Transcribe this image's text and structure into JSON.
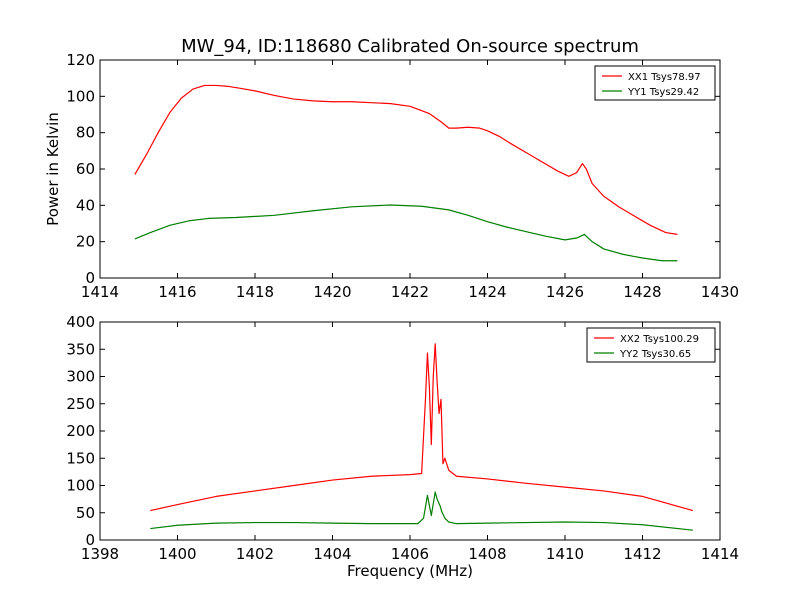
{
  "chart_data": [
    {
      "type": "line",
      "title": "MW_94, ID:118680 Calibrated On-source spectrum",
      "xlabel": "",
      "ylabel": "Power in Kelvin",
      "xlim": [
        1414,
        1430
      ],
      "ylim": [
        0,
        120
      ],
      "xticks": [
        1414,
        1416,
        1418,
        1420,
        1422,
        1424,
        1426,
        1428,
        1430
      ],
      "yticks": [
        0,
        20,
        40,
        60,
        80,
        100,
        120
      ],
      "legend": "top-right",
      "series": [
        {
          "name": "XX1 Tsys78.97",
          "color": "#ff0000",
          "x": [
            1414.9,
            1415.2,
            1415.5,
            1415.8,
            1416.1,
            1416.4,
            1416.7,
            1417.0,
            1417.3,
            1417.6,
            1418.0,
            1418.5,
            1419.0,
            1419.5,
            1420.0,
            1420.5,
            1421.0,
            1421.5,
            1422.0,
            1422.5,
            1422.8,
            1423.0,
            1423.2,
            1423.5,
            1423.8,
            1424.0,
            1424.3,
            1424.6,
            1425.0,
            1425.4,
            1425.8,
            1426.1,
            1426.3,
            1426.45,
            1426.55,
            1426.7,
            1427.0,
            1427.4,
            1427.8,
            1428.2,
            1428.6,
            1428.9
          ],
          "y": [
            57,
            68,
            80,
            91,
            99,
            104,
            106,
            106,
            105.5,
            104.5,
            103,
            100.5,
            98.5,
            97.5,
            97,
            97,
            96.5,
            96,
            94.5,
            90.5,
            86,
            82.5,
            82.5,
            83,
            82.5,
            81,
            78,
            74,
            69,
            64,
            59,
            56,
            58,
            63,
            60,
            52,
            45,
            39,
            34,
            29,
            25,
            24
          ]
        },
        {
          "name": "YY1 Tsys29.42",
          "color": "#008000",
          "x": [
            1414.9,
            1415.3,
            1415.8,
            1416.3,
            1416.8,
            1417.5,
            1418.5,
            1419.5,
            1420.5,
            1421.5,
            1422.3,
            1423.0,
            1423.5,
            1424.0,
            1424.5,
            1425.0,
            1425.5,
            1426.0,
            1426.3,
            1426.5,
            1426.7,
            1427.0,
            1427.5,
            1428.0,
            1428.5,
            1428.9
          ],
          "y": [
            21.5,
            25,
            29,
            31.5,
            32.8,
            33.3,
            34.5,
            37,
            39.2,
            40.2,
            39.5,
            37.5,
            34.5,
            31,
            28,
            25.5,
            23,
            21,
            22,
            24,
            20,
            16,
            13,
            11,
            9.5,
            9.5
          ]
        }
      ]
    },
    {
      "type": "line",
      "title": "",
      "xlabel": "Frequency (MHz)",
      "ylabel": "",
      "xlim": [
        1398,
        1414
      ],
      "ylim": [
        0,
        400
      ],
      "xticks": [
        1398,
        1400,
        1402,
        1404,
        1406,
        1408,
        1410,
        1412,
        1414
      ],
      "yticks": [
        0,
        50,
        100,
        150,
        200,
        250,
        300,
        350,
        400
      ],
      "legend": "top-right",
      "series": [
        {
          "name": "XX2 Tsys100.29",
          "color": "#ff0000",
          "x": [
            1399.3,
            1400.0,
            1401.0,
            1402.0,
            1403.0,
            1404.0,
            1405.0,
            1406.0,
            1406.3,
            1406.4,
            1406.45,
            1406.5,
            1406.55,
            1406.6,
            1406.65,
            1406.7,
            1406.75,
            1406.8,
            1406.85,
            1406.9,
            1407.0,
            1407.2,
            1408.0,
            1409.0,
            1410.0,
            1411.0,
            1412.0,
            1413.3
          ],
          "y": [
            54,
            65,
            80,
            90,
            100,
            110,
            117,
            120,
            122,
            260,
            343,
            280,
            175,
            300,
            360,
            290,
            232,
            258,
            140,
            150,
            128,
            117,
            112,
            104,
            97,
            90,
            80,
            54
          ]
        },
        {
          "name": "YY2 Tsys30.65",
          "color": "#008000",
          "x": [
            1399.3,
            1400.0,
            1401.0,
            1402.0,
            1403.0,
            1404.0,
            1405.0,
            1406.2,
            1406.35,
            1406.45,
            1406.55,
            1406.65,
            1406.7,
            1406.78,
            1406.82,
            1406.9,
            1407.0,
            1407.2,
            1408.0,
            1409.0,
            1410.0,
            1411.0,
            1412.0,
            1413.3
          ],
          "y": [
            21,
            27,
            31,
            32,
            32,
            31,
            30,
            30,
            40,
            82,
            45,
            88,
            75,
            62,
            52,
            40,
            33,
            30,
            31,
            32,
            33,
            32,
            28,
            18
          ]
        }
      ]
    }
  ]
}
